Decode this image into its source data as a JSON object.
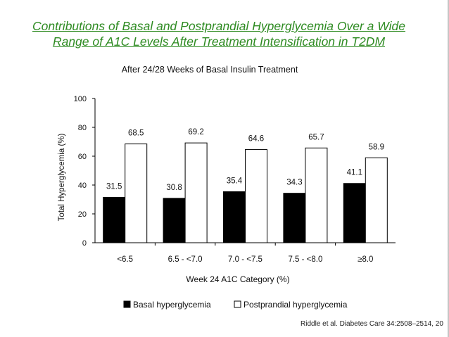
{
  "slide": {
    "title_line1": "Contributions of Basal and Postprandial Hyperglycemia Over a Wide",
    "title_line2": "Range of A1C Levels After Treatment Intensification in T2DM",
    "title_color": "#2E8B22",
    "citation": "Riddle et al. Diabetes Care 34:2508–2514, 20"
  },
  "chart_data": {
    "type": "bar",
    "title": "After 24/28 Weeks of Basal Insulin Treatment",
    "xlabel": "Week 24 A1C Category (%)",
    "ylabel": "Total Hyperglycemia (%)",
    "ylim": [
      0,
      100
    ],
    "yticks": [
      0,
      20,
      40,
      60,
      80,
      100
    ],
    "categories": [
      "<6.5",
      "6.5 - <7.0",
      "7.0 - <7.5",
      "7.5 - <8.0",
      "≥8.0"
    ],
    "series": [
      {
        "name": "Basal hyperglycemia",
        "values": [
          31.5,
          30.8,
          35.4,
          34.3,
          41.1
        ],
        "color": "#000000"
      },
      {
        "name": "Postprandial hyperglycemia",
        "values": [
          68.5,
          69.2,
          64.6,
          65.7,
          58.9
        ],
        "color": "#ffffff"
      }
    ],
    "data_labels": true,
    "grid": false,
    "legend_position": "bottom"
  }
}
